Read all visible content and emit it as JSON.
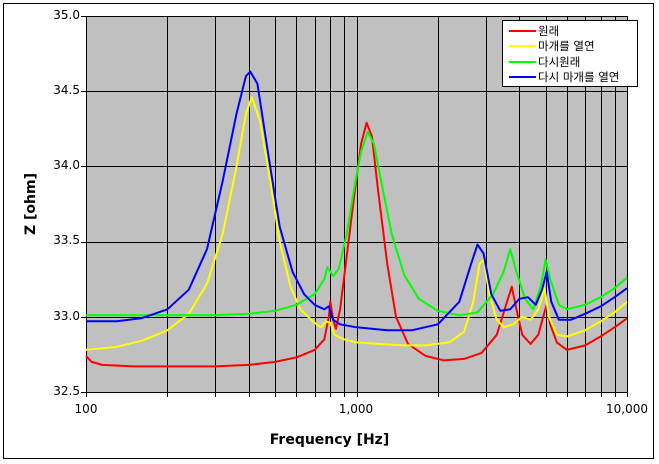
{
  "chart_data": {
    "type": "line",
    "title": "",
    "xlabel": "Frequency [Hz]",
    "ylabel": "Z [ohm]",
    "xscale": "log",
    "xlim": [
      100,
      10000
    ],
    "ylim": [
      32.5,
      35.0
    ],
    "grid": true,
    "legend_position": "top-right",
    "plot_background": "#C0C0C0",
    "x_tick_labels": [
      "100",
      "1,000",
      "10,000"
    ],
    "y_tick_labels": [
      "32.5",
      "33.0",
      "33.5",
      "34.0",
      "34.5",
      "35.0"
    ],
    "series": [
      {
        "name": "원래",
        "color": "#FF0000",
        "points": [
          [
            100,
            32.74
          ],
          [
            105,
            32.7
          ],
          [
            115,
            32.68
          ],
          [
            150,
            32.67
          ],
          [
            200,
            32.67
          ],
          [
            300,
            32.67
          ],
          [
            400,
            32.68
          ],
          [
            500,
            32.7
          ],
          [
            600,
            32.73
          ],
          [
            700,
            32.78
          ],
          [
            760,
            32.85
          ],
          [
            790,
            33.0
          ],
          [
            800,
            33.1
          ],
          [
            820,
            32.98
          ],
          [
            840,
            32.92
          ],
          [
            870,
            33.05
          ],
          [
            920,
            33.4
          ],
          [
            980,
            33.8
          ],
          [
            1040,
            34.15
          ],
          [
            1090,
            34.29
          ],
          [
            1140,
            34.2
          ],
          [
            1200,
            33.85
          ],
          [
            1300,
            33.35
          ],
          [
            1400,
            33.0
          ],
          [
            1550,
            32.82
          ],
          [
            1800,
            32.74
          ],
          [
            2100,
            32.71
          ],
          [
            2500,
            32.72
          ],
          [
            2900,
            32.76
          ],
          [
            3300,
            32.88
          ],
          [
            3600,
            33.1
          ],
          [
            3750,
            33.2
          ],
          [
            3900,
            33.05
          ],
          [
            4100,
            32.88
          ],
          [
            4400,
            32.82
          ],
          [
            4700,
            32.88
          ],
          [
            4900,
            33.0
          ],
          [
            5050,
            33.08
          ],
          [
            5200,
            32.95
          ],
          [
            5500,
            32.83
          ],
          [
            6000,
            32.78
          ],
          [
            7000,
            32.81
          ],
          [
            8000,
            32.87
          ],
          [
            9000,
            32.93
          ],
          [
            10000,
            32.99
          ]
        ]
      },
      {
        "name": "마개를 열연",
        "color": "#FFFF00",
        "points": [
          [
            100,
            32.78
          ],
          [
            130,
            32.8
          ],
          [
            160,
            32.84
          ],
          [
            200,
            32.91
          ],
          [
            240,
            33.02
          ],
          [
            280,
            33.22
          ],
          [
            320,
            33.55
          ],
          [
            360,
            34.0
          ],
          [
            390,
            34.35
          ],
          [
            410,
            34.46
          ],
          [
            440,
            34.3
          ],
          [
            480,
            33.9
          ],
          [
            520,
            33.5
          ],
          [
            570,
            33.2
          ],
          [
            620,
            33.05
          ],
          [
            700,
            32.96
          ],
          [
            740,
            32.93
          ],
          [
            770,
            32.97
          ],
          [
            800,
            32.96
          ],
          [
            830,
            32.88
          ],
          [
            900,
            32.85
          ],
          [
            1000,
            32.83
          ],
          [
            1200,
            32.82
          ],
          [
            1500,
            32.81
          ],
          [
            1800,
            32.81
          ],
          [
            2200,
            32.83
          ],
          [
            2500,
            32.9
          ],
          [
            2700,
            33.1
          ],
          [
            2850,
            33.35
          ],
          [
            2950,
            33.38
          ],
          [
            3100,
            33.15
          ],
          [
            3300,
            32.98
          ],
          [
            3500,
            32.93
          ],
          [
            3800,
            32.95
          ],
          [
            4100,
            33.0
          ],
          [
            4400,
            32.98
          ],
          [
            4700,
            33.05
          ],
          [
            4950,
            33.19
          ],
          [
            5150,
            33.0
          ],
          [
            5500,
            32.88
          ],
          [
            6000,
            32.87
          ],
          [
            7000,
            32.91
          ],
          [
            8000,
            32.97
          ],
          [
            9000,
            33.03
          ],
          [
            10000,
            33.1
          ]
        ]
      },
      {
        "name": "다시원래",
        "color": "#00FF00",
        "points": [
          [
            100,
            33.01
          ],
          [
            200,
            33.01
          ],
          [
            300,
            33.01
          ],
          [
            400,
            33.02
          ],
          [
            500,
            33.04
          ],
          [
            600,
            33.08
          ],
          [
            700,
            33.15
          ],
          [
            760,
            33.25
          ],
          [
            780,
            33.33
          ],
          [
            820,
            33.27
          ],
          [
            860,
            33.32
          ],
          [
            920,
            33.55
          ],
          [
            980,
            33.85
          ],
          [
            1040,
            34.1
          ],
          [
            1100,
            34.23
          ],
          [
            1160,
            34.15
          ],
          [
            1250,
            33.85
          ],
          [
            1350,
            33.55
          ],
          [
            1500,
            33.28
          ],
          [
            1700,
            33.12
          ],
          [
            2000,
            33.04
          ],
          [
            2400,
            33.01
          ],
          [
            2800,
            33.03
          ],
          [
            3200,
            33.15
          ],
          [
            3500,
            33.3
          ],
          [
            3700,
            33.45
          ],
          [
            3900,
            33.3
          ],
          [
            4200,
            33.12
          ],
          [
            4500,
            33.05
          ],
          [
            4800,
            33.2
          ],
          [
            5000,
            33.38
          ],
          [
            5200,
            33.25
          ],
          [
            5600,
            33.08
          ],
          [
            6000,
            33.05
          ],
          [
            7000,
            33.08
          ],
          [
            8000,
            33.13
          ],
          [
            9000,
            33.19
          ],
          [
            10000,
            33.26
          ]
        ]
      },
      {
        "name": "다시 마개를 열연",
        "color": "#0000FF",
        "points": [
          [
            100,
            32.97
          ],
          [
            130,
            32.97
          ],
          [
            160,
            32.99
          ],
          [
            200,
            33.05
          ],
          [
            240,
            33.18
          ],
          [
            280,
            33.45
          ],
          [
            320,
            33.9
          ],
          [
            360,
            34.35
          ],
          [
            390,
            34.6
          ],
          [
            405,
            34.63
          ],
          [
            430,
            34.55
          ],
          [
            470,
            34.1
          ],
          [
            520,
            33.6
          ],
          [
            580,
            33.3
          ],
          [
            640,
            33.15
          ],
          [
            700,
            33.08
          ],
          [
            760,
            33.05
          ],
          [
            790,
            33.07
          ],
          [
            820,
            32.98
          ],
          [
            870,
            32.95
          ],
          [
            1000,
            32.93
          ],
          [
            1300,
            32.91
          ],
          [
            1600,
            32.91
          ],
          [
            2000,
            32.95
          ],
          [
            2400,
            33.1
          ],
          [
            2650,
            33.35
          ],
          [
            2800,
            33.48
          ],
          [
            2950,
            33.42
          ],
          [
            3150,
            33.15
          ],
          [
            3400,
            33.04
          ],
          [
            3700,
            33.05
          ],
          [
            4000,
            33.12
          ],
          [
            4300,
            33.13
          ],
          [
            4600,
            33.08
          ],
          [
            4850,
            33.18
          ],
          [
            5050,
            33.3
          ],
          [
            5250,
            33.1
          ],
          [
            5600,
            32.98
          ],
          [
            6200,
            32.98
          ],
          [
            7000,
            33.02
          ],
          [
            8000,
            33.07
          ],
          [
            9000,
            33.13
          ],
          [
            10000,
            33.19
          ]
        ]
      }
    ]
  },
  "legend": {
    "items": [
      {
        "label": "원래",
        "color": "#FF0000"
      },
      {
        "label": "마개를 열연",
        "color": "#FFFF00"
      },
      {
        "label": "다시원래",
        "color": "#00FF00"
      },
      {
        "label": "다시 마개를 열연",
        "color": "#0000FF"
      }
    ]
  }
}
